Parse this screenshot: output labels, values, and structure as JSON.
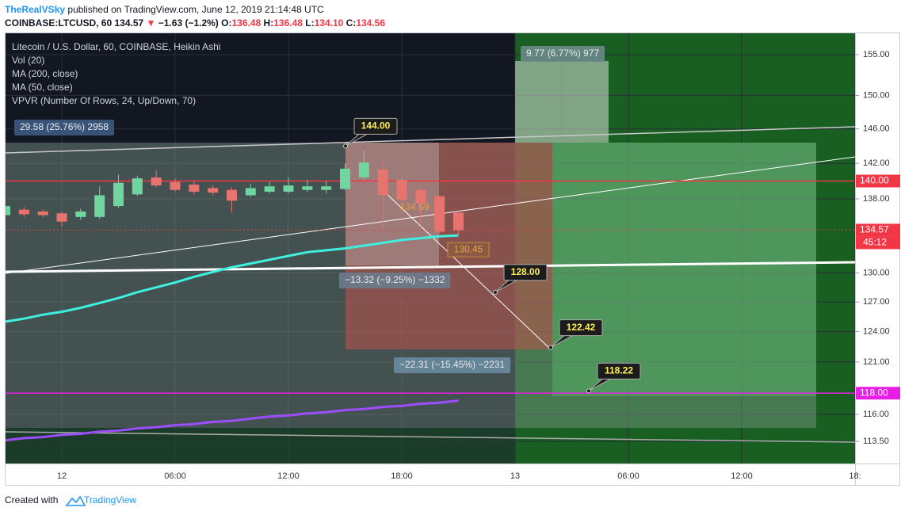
{
  "header": {
    "author": "TheRealVSky",
    "published": "published on TradingView.com, June 12, 2019 21:14:48 UTC",
    "symbol": "COINBASE:LTCUSD, 60",
    "last": "134.57",
    "arrow": "▼",
    "change": "−1.63 (−1.2%)",
    "o_label": "O:",
    "o": "136.48",
    "h_label": "H:",
    "h": "136.48",
    "l_label": "L:",
    "l": "134.10",
    "c_label": "C:",
    "c": "134.56"
  },
  "chart_data": {
    "type": "candlestick",
    "title": "Litecoin / U.S. Dollar, 60, COINBASE, Heikin Ashi",
    "indicators": [
      "Vol (20)",
      "VPVR (Number Of Rows, 24, Up/Down, 70)"
    ],
    "categories": [
      null,
      null,
      null,
      "12",
      null,
      null,
      null,
      null,
      null,
      "06:00",
      null,
      null,
      null,
      null,
      null,
      "12:00",
      null,
      null,
      null,
      null,
      null,
      "18:00",
      null,
      null,
      null,
      null,
      null,
      "13",
      null,
      null,
      null,
      null,
      null,
      "06:00",
      null,
      null,
      null,
      null,
      null,
      "12:00",
      null,
      null,
      null,
      null,
      null,
      "18:"
    ],
    "open": [
      136.2,
      136.8,
      136.6,
      136.4,
      136.0,
      136.0,
      137.2,
      138.5,
      140.4,
      139.9,
      139.6,
      139.2,
      139.0,
      138.4,
      138.8,
      138.8,
      139.0,
      139.0,
      139.1,
      140.4,
      141.3,
      140.1,
      139.0,
      138.3,
      136.48,
      null,
      null,
      null,
      null,
      null,
      null,
      null,
      null,
      null,
      null,
      null,
      null,
      null,
      null,
      null,
      null,
      null,
      null,
      null,
      null,
      null
    ],
    "high": [
      137.5,
      137.1,
      136.8,
      136.6,
      136.9,
      139.4,
      140.7,
      140.6,
      141.2,
      140.3,
      140.0,
      139.5,
      139.3,
      139.7,
      139.9,
      140.4,
      140.1,
      140.0,
      142.0,
      143.5,
      142.2,
      140.4,
      139.2,
      138.3,
      136.48,
      null,
      null,
      null,
      null,
      null,
      null,
      null,
      null,
      null,
      null,
      null,
      null,
      null,
      null,
      null,
      null,
      null,
      null,
      null,
      null,
      null
    ],
    "low": [
      136.0,
      136.0,
      136.0,
      135.0,
      135.7,
      135.8,
      137.0,
      138.3,
      139.3,
      138.8,
      138.5,
      138.4,
      136.5,
      138.2,
      138.6,
      138.6,
      138.8,
      138.6,
      139.0,
      140.1,
      134.7,
      137.6,
      135.0,
      134.2,
      134.1,
      null,
      null,
      null,
      null,
      null,
      null,
      null,
      null,
      null,
      null,
      null,
      null,
      null,
      null,
      null,
      null,
      null,
      null,
      null,
      null,
      null
    ],
    "close": [
      137.2,
      136.3,
      136.2,
      135.5,
      136.6,
      138.4,
      139.8,
      140.3,
      139.5,
      139.0,
      138.8,
      138.7,
      137.8,
      139.2,
      139.4,
      139.5,
      139.4,
      139.4,
      141.4,
      142.1,
      138.4,
      137.9,
      137.5,
      134.4,
      134.56,
      null,
      null,
      null,
      null,
      null,
      null,
      null,
      null,
      null,
      null,
      null,
      null,
      null,
      null,
      null,
      null,
      null,
      null,
      null,
      null,
      null
    ],
    "up_color": "#6fd69f",
    "down_color": "#e8746f",
    "series": [
      {
        "name": "MA (200, close)",
        "color": "#9c4dff",
        "values": [
          113.6,
          113.8,
          113.9,
          114.1,
          114.2,
          114.4,
          114.5,
          114.7,
          114.8,
          115.0,
          115.1,
          115.3,
          115.4,
          115.6,
          115.8,
          115.9,
          116.1,
          116.2,
          116.4,
          116.5,
          116.7,
          116.8,
          117.0,
          117.1,
          117.3,
          null,
          null,
          null,
          null,
          null,
          null,
          null,
          null,
          null,
          null,
          null,
          null,
          null,
          null,
          null,
          null,
          null,
          null,
          null,
          null,
          null
        ]
      },
      {
        "name": "MA (50, close)",
        "color": "#3ff0e0",
        "values": [
          125.0,
          125.3,
          125.7,
          126.0,
          126.4,
          126.9,
          127.4,
          128.0,
          128.5,
          129.0,
          129.6,
          130.1,
          130.6,
          131.0,
          131.4,
          131.8,
          132.2,
          132.4,
          132.6,
          132.9,
          133.2,
          133.5,
          133.7,
          133.9,
          134.0,
          null,
          null,
          null,
          null,
          null,
          null,
          null,
          null,
          null,
          null,
          null,
          null,
          null,
          null,
          null,
          null,
          null,
          null,
          null,
          null,
          null
        ]
      }
    ],
    "log_scale": true,
    "grid": true,
    "ylim": [
      111.5,
      157.7
    ],
    "yticks": [
      {
        "value": 155,
        "label": "155.00"
      },
      {
        "value": 150,
        "label": "150.00"
      },
      {
        "value": 146,
        "label": "146.00"
      },
      {
        "value": 142,
        "label": "142.00"
      },
      {
        "value": 138,
        "label": "138.00"
      },
      {
        "value": 130,
        "label": "130.00"
      },
      {
        "value": 127,
        "label": "127.00"
      },
      {
        "value": 124,
        "label": "124.00"
      },
      {
        "value": 121,
        "label": "121.00"
      },
      {
        "value": 116,
        "label": "116.00"
      },
      {
        "value": 113.5,
        "label": "113.50"
      }
    ],
    "price_labels": [
      {
        "value": 140,
        "label": "140.00",
        "color": "#f23645",
        "dashed": false
      },
      {
        "value": 134.57,
        "label": "134.57",
        "color": "#f23645",
        "dashed": true
      },
      {
        "value": 118,
        "label": "118.00",
        "color": "#e91ee6",
        "dashed": false
      }
    ],
    "countdown": "45:12",
    "callouts": [
      {
        "value": 144,
        "label": "144.00"
      },
      {
        "value": 128,
        "label": "128.00"
      },
      {
        "value": 122.42,
        "label": "122.42"
      },
      {
        "value": 118.22,
        "label": "118.22"
      }
    ],
    "order_labels": [
      {
        "value": 130.45,
        "label": "130.45"
      },
      {
        "value": 134.69,
        "label": "134.69"
      }
    ],
    "measurements": [
      "29.58 (25.76%) 2958",
      "9.77 (6.77%) 977",
      "−13.32 (−9.25%) −1332",
      "−22.31 (−15.45%) −2231"
    ]
  },
  "footer": {
    "created": "Created with",
    "brand": "TradingView"
  }
}
